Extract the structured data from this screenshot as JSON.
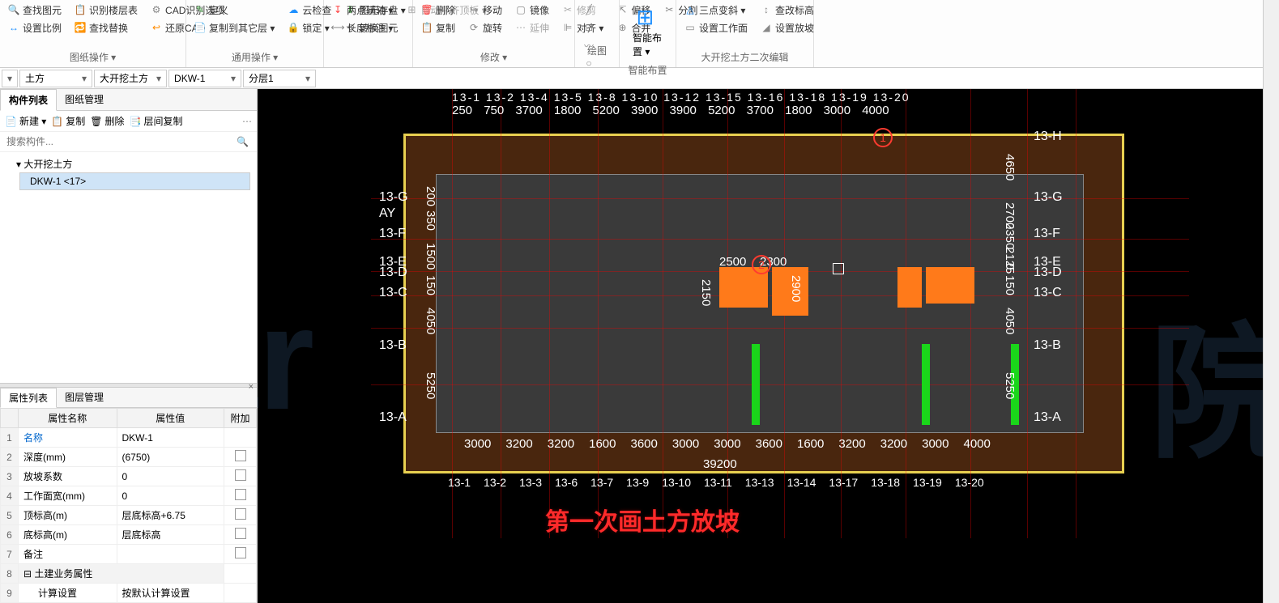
{
  "ribbon": {
    "groups": [
      {
        "label": "图纸操作 ▾",
        "buttons": [
          {
            "icon": "🔍",
            "label": "查找图元",
            "color": "#1e90ff"
          },
          {
            "icon": "↔",
            "label": "设置比例",
            "color": "#1e90ff"
          },
          {
            "icon": "📋",
            "label": "识别楼层表",
            "color": "#888"
          },
          {
            "icon": "🔁",
            "label": "查找替换",
            "color": "#1e90ff"
          },
          {
            "icon": "⚙",
            "label": "CAD识别选项",
            "color": "#888"
          },
          {
            "icon": "↩",
            "label": "还原CAD",
            "color": "#ff8c00"
          }
        ]
      },
      {
        "label": "通用操作 ▾",
        "buttons": [
          {
            "icon": "✎",
            "label": "定义",
            "color": "#5eb85e"
          },
          {
            "icon": "📄",
            "label": "复制到其它层 ▾",
            "color": "#1e90ff"
          },
          {
            "icon": "☁",
            "label": "云检查",
            "color": "#1e90ff"
          },
          {
            "icon": "🔒",
            "label": "锁定 ▾",
            "color": "#ffb400"
          },
          {
            "icon": "⬇",
            "label": "图元存盘 ▾",
            "color": "#5eb85e"
          },
          {
            "icon": "⟲",
            "label": "转换图元",
            "color": "#888"
          }
        ]
      },
      {
        "label": "",
        "buttons": [
          {
            "icon": "↧",
            "label": "两点辅轴 ▾",
            "color": "#ff4040"
          },
          {
            "icon": "⟷",
            "label": "长度标注 ▾",
            "color": "#888"
          },
          {
            "icon": "⊞",
            "label": "自动平齐顶板 ▾",
            "color": "#aaa",
            "disabled": true
          }
        ]
      },
      {
        "label": "修改 ▾",
        "buttons": [
          {
            "icon": "🗑",
            "label": "删除",
            "color": "#ff4040"
          },
          {
            "icon": "📋",
            "label": "复制",
            "color": "#1e90ff"
          },
          {
            "icon": "↪",
            "label": "移动",
            "color": "#888"
          },
          {
            "icon": "⟳",
            "label": "旋转",
            "color": "#888"
          },
          {
            "icon": "▢",
            "label": "镜像",
            "color": "#888"
          },
          {
            "icon": "⋯",
            "label": "延伸",
            "color": "#aaa",
            "disabled": true
          },
          {
            "icon": "✂",
            "label": "修剪",
            "color": "#aaa",
            "disabled": true
          },
          {
            "icon": "⊫",
            "label": "对齐 ▾",
            "color": "#888"
          },
          {
            "icon": "⇱",
            "label": "偏移",
            "color": "#888"
          },
          {
            "icon": "⊕",
            "label": "合并",
            "color": "#888"
          },
          {
            "icon": "✂",
            "label": "分割",
            "color": "#888"
          }
        ]
      },
      {
        "label": "绘图",
        "buttons": [
          {
            "icon": "╱",
            "label": "",
            "color": "#888"
          },
          {
            "icon": "⊡",
            "label": "",
            "color": "#888"
          },
          {
            "icon": "〰",
            "label": "",
            "color": "#888"
          },
          {
            "icon": "○",
            "label": "",
            "color": "#888"
          }
        ]
      },
      {
        "label": "智能布置",
        "big": {
          "icon": "⊞",
          "label": "智能布置 ▾",
          "color": "#1e90ff"
        }
      },
      {
        "label": "大开挖土方二次编辑",
        "buttons": [
          {
            "icon": "△",
            "label": "三点变斜 ▾",
            "color": "#1e90ff"
          },
          {
            "icon": "▭",
            "label": "设置工作面",
            "color": "#888"
          },
          {
            "icon": "↕",
            "label": "查改标高",
            "color": "#888"
          },
          {
            "icon": "◢",
            "label": "设置放坡",
            "color": "#888"
          }
        ]
      }
    ]
  },
  "selectors": {
    "s0": "",
    "s1": "土方",
    "s2": "大开挖土方",
    "s3": "DKW-1",
    "s4": "分层1"
  },
  "leftPanel": {
    "tabs": {
      "a": "构件列表",
      "b": "图纸管理"
    },
    "toolbar": {
      "new": "新建 ▾",
      "copy": "复制",
      "del": "删除",
      "layercopy": "层间复制"
    },
    "searchPlaceholder": "搜索构件...",
    "tree": {
      "parent": "大开挖土方",
      "child": "DKW-1 <17>"
    }
  },
  "propPanel": {
    "tabs": {
      "a": "属性列表",
      "b": "图层管理"
    },
    "headers": {
      "name": "属性名称",
      "value": "属性值",
      "extra": "附加"
    },
    "rows": [
      {
        "n": "1",
        "name": "名称",
        "value": "DKW-1",
        "link": true
      },
      {
        "n": "2",
        "name": "深度(mm)",
        "value": "(6750)",
        "chk": true
      },
      {
        "n": "3",
        "name": "放坡系数",
        "value": "0",
        "chk": true
      },
      {
        "n": "4",
        "name": "工作面宽(mm)",
        "value": "0",
        "chk": true
      },
      {
        "n": "5",
        "name": "顶标高(m)",
        "value": "层底标高+6.75",
        "chk": true
      },
      {
        "n": "6",
        "name": "底标高(m)",
        "value": "层底标高",
        "chk": true
      },
      {
        "n": "7",
        "name": "备注",
        "value": "",
        "chk": true
      },
      {
        "n": "8",
        "name": "土建业务属性",
        "value": "",
        "group": true
      },
      {
        "n": "9",
        "name": "计算设置",
        "value": "按默认计算设置",
        "indent": true
      }
    ]
  },
  "viewport": {
    "annotation": "第一次画土方放坡",
    "markers": {
      "m1": "1",
      "m2": "2"
    },
    "gridLabels": {
      "leftRows": [
        "13-G",
        "AY",
        "13-F",
        "13-E",
        "13-D",
        "13-C",
        "13-B",
        "13-A"
      ],
      "rightRows": [
        "13-H",
        "13-G",
        "13-F",
        "13-E",
        "13-D",
        "13-C",
        "13-B",
        "13-A"
      ],
      "topCols": "13-1   13-2    13-4 13-5              13-8  13-10       13-12        13-15 13-16     13-18 13-19       13-20",
      "topDims": "250 750   3700 1800    5200       3900     3900       5200     3700  1800  3000  4000",
      "botCols": [
        "13-1",
        "13-2",
        "13-3",
        "13-6",
        "13-7",
        "13-9",
        "13-10",
        "13-11",
        "13-13",
        "13-14",
        "13-17",
        "13-18",
        "13-19",
        "13-20"
      ],
      "botDims": [
        "3000",
        "3200",
        "3200",
        "1600",
        "3600",
        "3000",
        "3000",
        "3600",
        "1600",
        "3200",
        "3200",
        "3000",
        "4000"
      ],
      "botTotal": "39200",
      "rightDims": [
        "4650",
        "2700",
        "2350",
        "2125",
        "0",
        "150",
        "4050",
        "5250"
      ],
      "leftDims": [
        "200",
        "350",
        "150",
        "0",
        "150",
        "4050",
        "5250"
      ],
      "innerDims": {
        "a": "2500",
        "b": "2300",
        "c": "2150",
        "d": "2900"
      }
    },
    "colors": {
      "bg": "#000000",
      "outline": "#e8d050",
      "fill": "#d26e28",
      "inner": "#3a3a3a",
      "gridline": "#ff0000",
      "green": "#1ad61a",
      "orange": "#ff7a1a",
      "text": "#ffffff",
      "annot": "#ff2a2a"
    }
  },
  "watermark": {
    "left": "Star",
    "right": "院"
  }
}
